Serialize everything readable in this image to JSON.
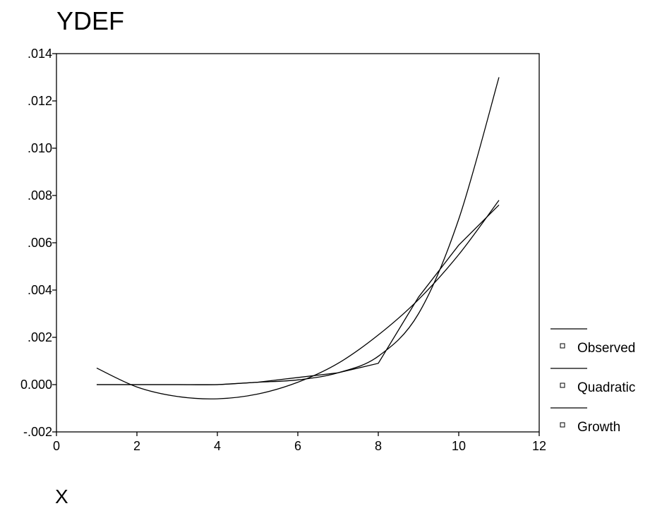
{
  "chart_data": {
    "type": "line",
    "title": "YDEF",
    "xlabel": "X",
    "ylabel": "",
    "xlim": [
      0,
      12
    ],
    "ylim": [
      -0.002,
      0.014
    ],
    "x_ticks": [
      0,
      2,
      4,
      6,
      8,
      10,
      12
    ],
    "x_tick_labels": [
      "0",
      "2",
      "4",
      "6",
      "8",
      "10",
      "12"
    ],
    "y_ticks": [
      -0.002,
      0.0,
      0.002,
      0.004,
      0.006,
      0.008,
      0.01,
      0.012,
      0.014
    ],
    "y_tick_labels": [
      "-.002",
      "0.000",
      ".002",
      ".004",
      ".006",
      ".008",
      ".010",
      ".012",
      ".014"
    ],
    "grid": false,
    "legend_position": "right",
    "x": [
      1,
      2,
      3,
      4,
      5,
      6,
      7,
      8,
      9,
      10,
      11
    ],
    "series": [
      {
        "name": "Observed",
        "values": [
          0.0,
          0.0,
          0.0,
          0.0,
          0.0001,
          0.0003,
          0.0005,
          0.0009,
          0.0037,
          0.0059,
          0.0076
        ]
      },
      {
        "name": "Quadratic",
        "values": [
          0.0007,
          -0.0001,
          -0.0005,
          -0.0006,
          -0.0004,
          0.0001,
          0.0009,
          0.0021,
          0.0036,
          0.0055,
          0.0078
        ]
      },
      {
        "name": "Growth",
        "values": [
          0.0,
          0.0,
          0.0,
          0.0,
          0.0001,
          0.0002,
          0.0005,
          0.0012,
          0.003,
          0.007,
          0.013
        ]
      }
    ]
  }
}
